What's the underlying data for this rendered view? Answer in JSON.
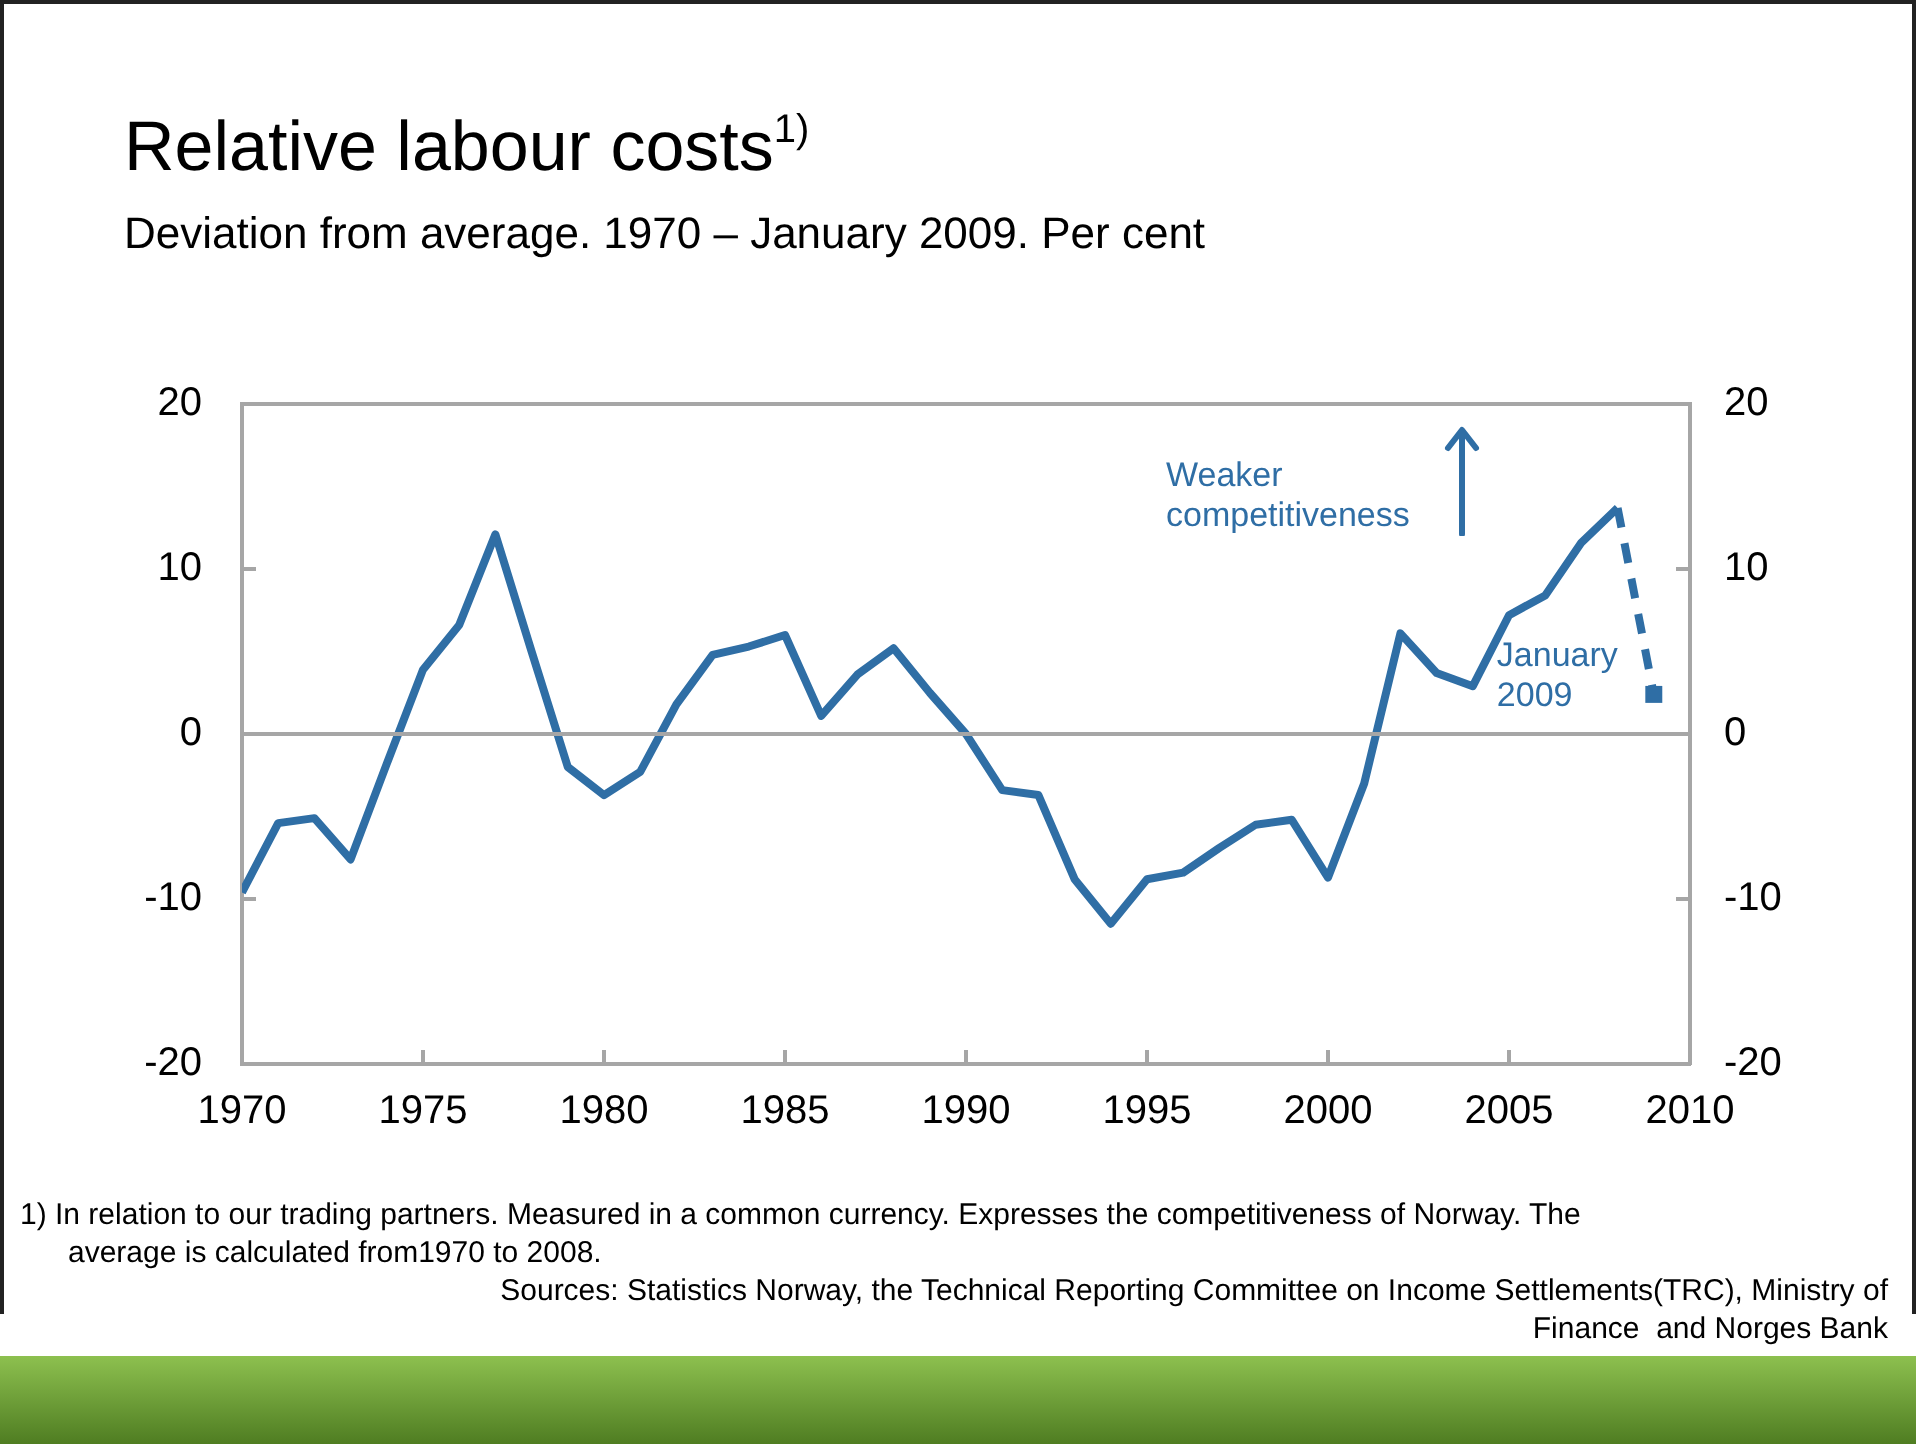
{
  "chart_data": {
    "type": "line",
    "title": "Relative labour costs$^{1)}$",
    "subtitle": "Deviation from average. 1970 – January 2009. Per cent",
    "x": [
      1970,
      1971,
      1972,
      1973,
      1974,
      1975,
      1976,
      1977,
      1978,
      1979,
      1980,
      1981,
      1982,
      1983,
      1984,
      1985,
      1986,
      1987,
      1988,
      1989,
      1990,
      1991,
      1992,
      1993,
      1994,
      1995,
      1996,
      1997,
      1998,
      1999,
      2000,
      2001,
      2002,
      2003,
      2004,
      2005,
      2006,
      2007,
      2008,
      2009
    ],
    "series": [
      {
        "color": "#2f6ea5",
        "line_style": "solid",
        "marker": "none",
        "values": [
          -9.6,
          -5.4,
          -5.1,
          -7.6,
          -1.8,
          3.9,
          6.6,
          12.1,
          5.0,
          -2.0,
          -3.7,
          -2.3,
          1.8,
          4.8,
          5.3,
          6.0,
          1.1,
          3.6,
          5.2,
          2.5,
          0,
          -3.4,
          -3.7,
          -8.8,
          -11.5,
          -8.8,
          -8.4,
          -6.9,
          -5.5,
          -5.2,
          -8.7,
          -3.0,
          6.1,
          3.7,
          2.9,
          7.2,
          8.4,
          11.6,
          13.7,
          null
        ]
      },
      {
        "type": "line",
        "color": "#2f6ea5",
        "line_style": "dashed",
        "marker": "none",
        "values": [
          null,
          null,
          null,
          null,
          null,
          null,
          null,
          null,
          null,
          null,
          null,
          null,
          null,
          null,
          null,
          null,
          null,
          null,
          null,
          null,
          null,
          null,
          null,
          null,
          null,
          null,
          null,
          null,
          null,
          null,
          null,
          null,
          null,
          null,
          null,
          null,
          null,
          null,
          13.7,
          2.4
        ]
      },
      {
        "type": "scatter",
        "color": "#2f6ea5",
        "marker": "square",
        "values": [
          null,
          null,
          null,
          null,
          null,
          null,
          null,
          null,
          null,
          null,
          null,
          null,
          null,
          null,
          null,
          null,
          null,
          null,
          null,
          null,
          null,
          null,
          null,
          null,
          null,
          null,
          null,
          null,
          null,
          null,
          null,
          null,
          null,
          null,
          null,
          null,
          null,
          null,
          null,
          2.4
        ]
      }
    ],
    "xlim": [
      1970,
      2010
    ],
    "xticks": [
      1970,
      1975,
      1980,
      1985,
      1990,
      1995,
      2000,
      2005,
      2010
    ],
    "ylim": [
      -20,
      20
    ],
    "yticks": [
      -20,
      -10,
      0,
      10,
      20
    ],
    "y2lim": [
      -20,
      20
    ],
    "y2ticks": [
      -20,
      -10,
      0,
      10,
      20
    ],
    "ref_lines": [
      {
        "axis": "y",
        "value": 0,
        "color": "#a6a6a6"
      }
    ],
    "grid": false,
    "legend": false,
    "annotations": [
      "Weaker competitiveness",
      {
        "text": "January 2009",
        "x": 2009,
        "y": 2.4
      },
      "1) In relation to our trading partners. Measured in a common currency. Expresses the competitiveness of Norway. The average is calculated from1970 to 2008.",
      "Sources: Statistics Norway, the Technical Reporting Committee on Income Settlements(TRC), Ministry of Finance  and Norges Bank"
    ]
  }
}
